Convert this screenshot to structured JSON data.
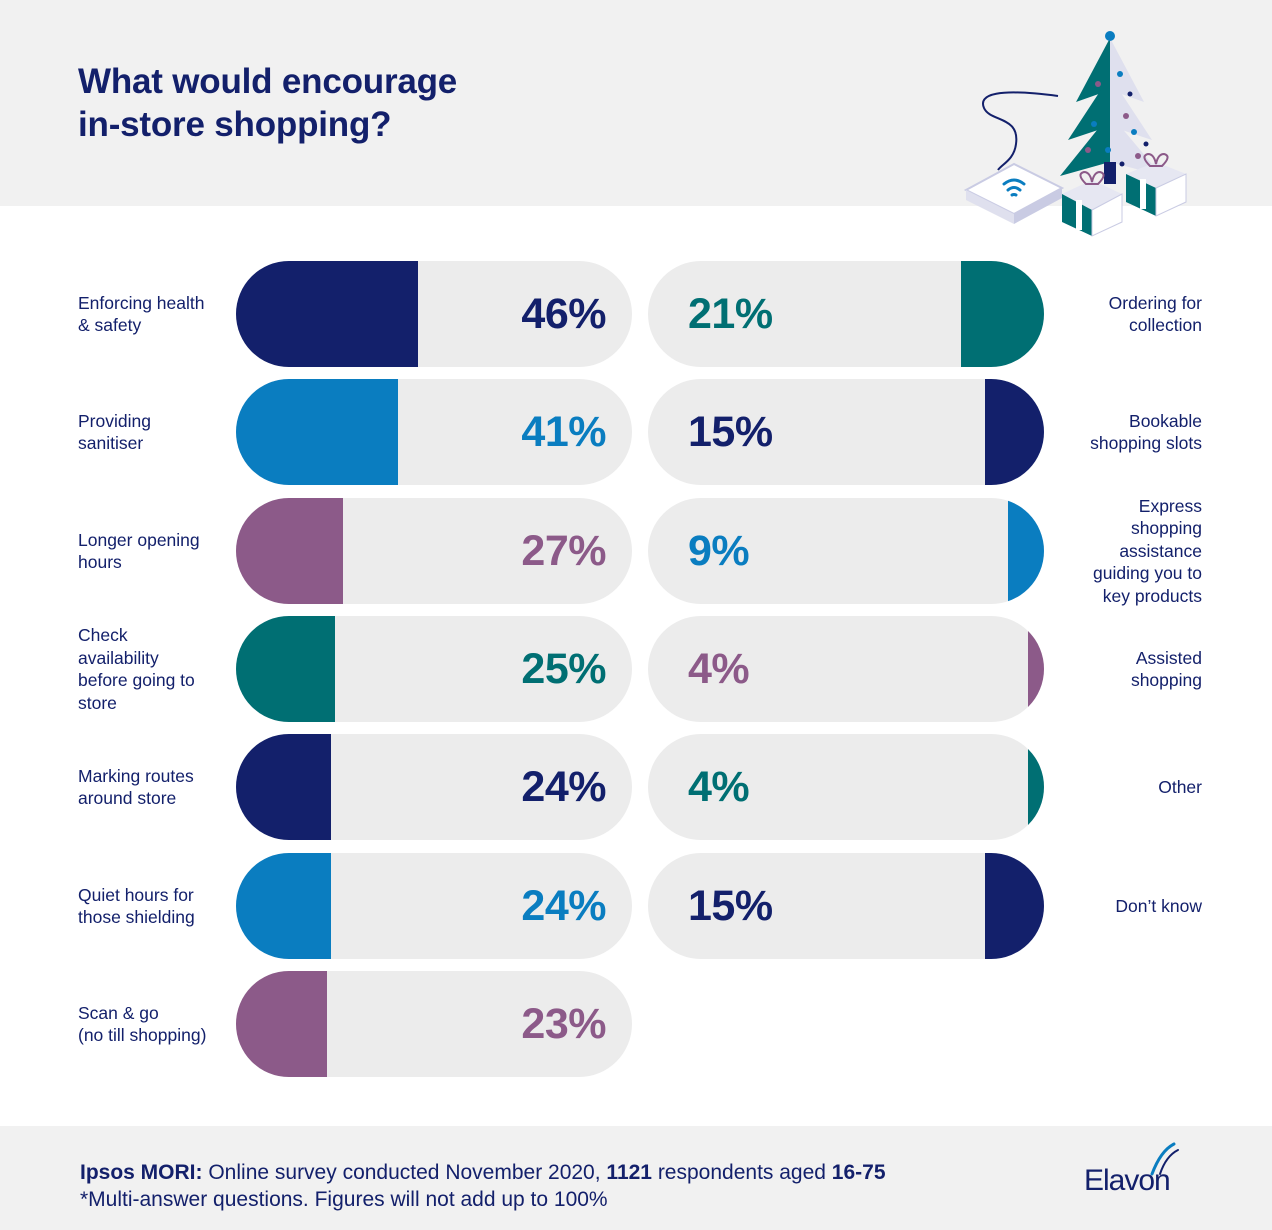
{
  "title_lines": [
    "What would encourage",
    "in-store shopping?"
  ],
  "colors": {
    "navy": "#13206b",
    "blue": "#0a7dc0",
    "purple": "#8c5a89",
    "teal": "#006f73",
    "pill_bg": "#ececec"
  },
  "chart_data": {
    "type": "bar",
    "title": "What would encourage in-store shopping?",
    "unit": "%",
    "xlim": [
      0,
      100
    ],
    "left_column": [
      {
        "label": "Enforcing health\n& safety",
        "value": 46,
        "display": "46%",
        "color": "navy",
        "label_color": "navy"
      },
      {
        "label": "Providing\nsanitiser",
        "value": 41,
        "display": "41%",
        "color": "blue",
        "label_color": "blue"
      },
      {
        "label": "Longer opening\nhours",
        "value": 27,
        "display": "27%",
        "color": "purple",
        "label_color": "purple"
      },
      {
        "label": "Check\navailability\nbefore going to\nstore",
        "value": 25,
        "display": "25%",
        "color": "teal",
        "label_color": "teal"
      },
      {
        "label": "Marking routes\naround store",
        "value": 24,
        "display": "24%",
        "color": "navy",
        "label_color": "navy"
      },
      {
        "label": "Quiet hours for\nthose shielding",
        "value": 24,
        "display": "24%",
        "color": "blue",
        "label_color": "blue"
      },
      {
        "label": "Scan & go\n(no till shopping)",
        "value": 23,
        "display": "23%",
        "color": "purple",
        "label_color": "purple"
      }
    ],
    "right_column": [
      {
        "label": "Ordering for\ncollection",
        "value": 21,
        "display": "21%",
        "color": "teal",
        "label_color": "teal"
      },
      {
        "label": "Bookable\nshopping slots",
        "value": 15,
        "display": "15%",
        "color": "navy",
        "label_color": "navy"
      },
      {
        "label": "Express\nshopping\nassistance\nguiding you to\nkey products",
        "value": 9,
        "display": "9%",
        "color": "blue",
        "label_color": "blue"
      },
      {
        "label": "Assisted\nshopping",
        "value": 4,
        "display": "4%",
        "color": "purple",
        "label_color": "purple"
      },
      {
        "label": "Other",
        "value": 4,
        "display": "4%",
        "color": "teal",
        "label_color": "teal"
      },
      {
        "label": "Don’t know",
        "value": 15,
        "display": "15%",
        "color": "navy",
        "label_color": "navy"
      }
    ]
  },
  "footnote": {
    "source_bold": "Ipsos MORI:",
    "source_text_1": " Online survey conducted November 2020, ",
    "respondents": "1121",
    "source_text_2": " respondents aged ",
    "ages": "16-75",
    "note": "*Multi-answer questions. Figures will not add up to 100%"
  },
  "brand": {
    "logo_text": "Elavon"
  }
}
